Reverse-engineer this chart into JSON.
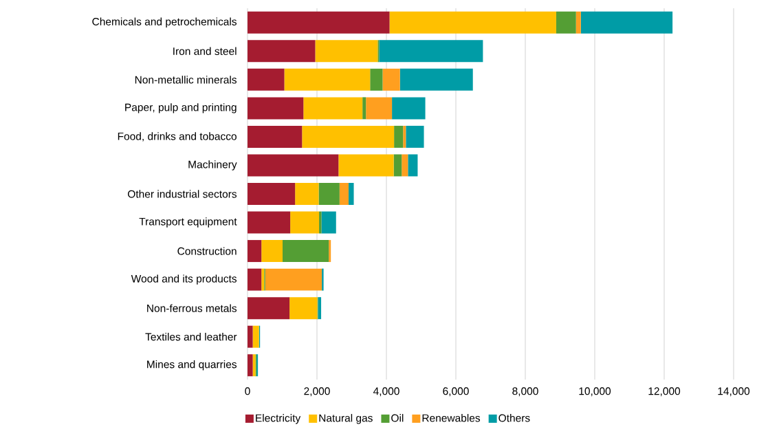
{
  "chart_data": {
    "type": "bar",
    "orientation": "horizontal",
    "stacked": true,
    "grid": "x",
    "legend": "bottom",
    "categories": [
      "Chemicals and petrochemicals",
      "Iron and steel",
      "Non-metallic minerals",
      "Paper, pulp and printing",
      "Food, drinks and tobacco",
      "Machinery",
      "Other industrial sectors",
      "Transport equipment",
      "Construction",
      "Wood and its products",
      "Non-ferrous metals",
      "Textiles and leather",
      "Mines and quarries"
    ],
    "series": [
      {
        "name": "Electricity",
        "color": "#a51c30",
        "values": [
          4090,
          1950,
          1060,
          1610,
          1570,
          2620,
          1370,
          1230,
          400,
          400,
          1210,
          150,
          150
        ]
      },
      {
        "name": "Natural gas",
        "color": "#ffc000",
        "values": [
          4800,
          1800,
          2470,
          1700,
          2650,
          1590,
          680,
          830,
          610,
          80,
          800,
          180,
          80
        ]
      },
      {
        "name": "Oil",
        "color": "#549e34",
        "values": [
          570,
          40,
          360,
          100,
          260,
          230,
          600,
          70,
          1330,
          30,
          20,
          0,
          30
        ]
      },
      {
        "name": "Renewables",
        "color": "#ff9f1f",
        "values": [
          140,
          0,
          500,
          750,
          80,
          180,
          260,
          0,
          60,
          1630,
          0,
          0,
          0
        ]
      },
      {
        "name": "Others",
        "color": "#009ca6",
        "values": [
          2640,
          2990,
          2100,
          960,
          520,
          280,
          150,
          420,
          0,
          50,
          90,
          30,
          40
        ]
      }
    ],
    "xlim": [
      0,
      14000
    ],
    "xticks": [
      0,
      {
        "value": 2000,
        "label": "2,000"
      },
      {
        "value": 4000,
        "label": "4,000"
      },
      {
        "value": 6000,
        "label": "6,000"
      },
      {
        "value": 8000,
        "label": "8,000"
      },
      {
        "value": 10000,
        "label": "10,000"
      },
      {
        "value": 12000,
        "label": "12,000"
      },
      {
        "value": 14000,
        "label": "14,000"
      }
    ]
  }
}
